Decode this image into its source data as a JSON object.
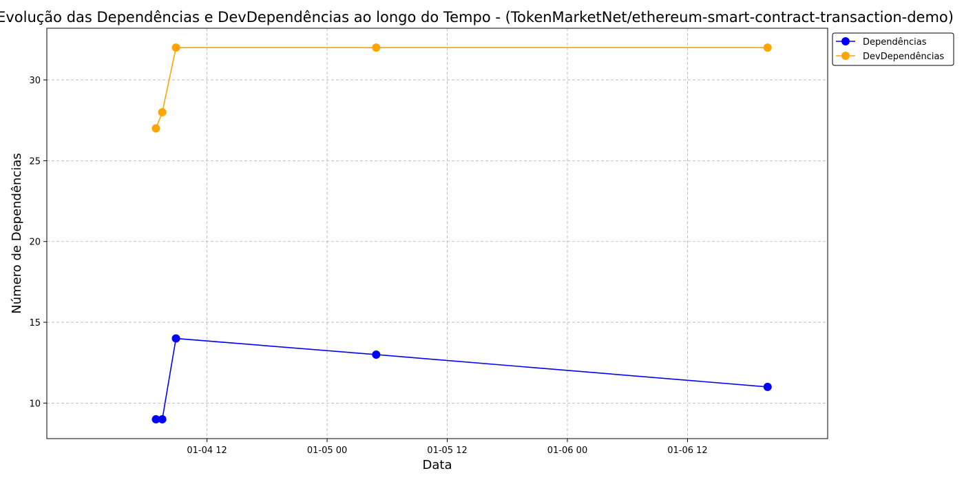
{
  "chart_data": {
    "type": "line",
    "title": "Evolução das Dependências e DevDependências ao longo do Tempo - (TokenMarketNet/ethereum-smart-contract-transaction-demo)",
    "xlabel": "Data",
    "ylabel": "Número de Dependências",
    "xlim": [
      "2018-01-03 20:00",
      "2018-01-07 02:00"
    ],
    "ylim": [
      7.8,
      33.2
    ],
    "x_ticks": [
      {
        "value": "2018-01-04 12:00",
        "label": "01-04 12"
      },
      {
        "value": "2018-01-05 00:00",
        "label": "01-05 00"
      },
      {
        "value": "2018-01-05 12:00",
        "label": "01-05 12"
      },
      {
        "value": "2018-01-06 00:00",
        "label": "01-06 00"
      },
      {
        "value": "2018-01-06 12:00",
        "label": "01-06 12"
      }
    ],
    "y_ticks": [
      10,
      15,
      20,
      25,
      30
    ],
    "grid": true,
    "legend_position": "outside-top-right",
    "x": [
      "2018-01-04 06:54",
      "2018-01-04 07:32",
      "2018-01-04 08:54",
      "2018-01-05 04:54",
      "2018-01-06 20:00"
    ],
    "series": [
      {
        "name": "Dependências",
        "color": "#0000ff",
        "values": [
          9,
          9,
          14,
          13,
          11
        ]
      },
      {
        "name": "DevDependências",
        "color": "#ffa500",
        "values": [
          27,
          28,
          32,
          32,
          32
        ]
      }
    ]
  }
}
